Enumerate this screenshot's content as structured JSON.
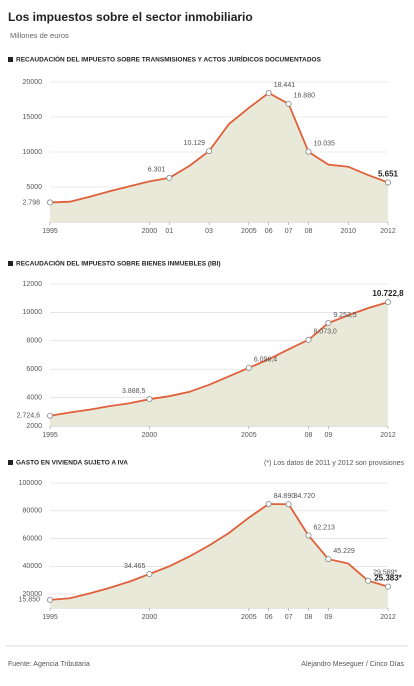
{
  "title": "Los impuestos sobre el sector inmobiliario",
  "subtitle": "Millones de euros",
  "source": "Fuente: Agencia Tributaria",
  "credit": "Alejandro Meseguer / Cinco Días",
  "chart_data": [
    {
      "type": "area",
      "title": "RECAUDACIÓN DEL IMPUESTO SOBRE TRANSMISIONES Y ACTOS JURÍDICOS DOCUMENTADOS",
      "color": "#e0603a",
      "fill": "#e9e9da",
      "grid": true,
      "x": [
        1995,
        1996,
        1997,
        1998,
        1999,
        2000,
        2001,
        2002,
        2003,
        2004,
        2005,
        2006,
        2007,
        2008,
        2009,
        2010,
        2011,
        2012
      ],
      "values": [
        2798,
        2900,
        3600,
        4400,
        5100,
        5800,
        6301,
        8000,
        10129,
        14000,
        16300,
        18441,
        16880,
        10035,
        8200,
        7900,
        6700,
        5651
      ],
      "value_labels": [
        "2.798",
        null,
        null,
        null,
        null,
        null,
        "6.301",
        null,
        "10.129",
        null,
        null,
        "18.441",
        "16.880",
        "10.035",
        null,
        null,
        null,
        "5.651"
      ],
      "xlim": [
        1995,
        2012
      ],
      "xticks": [
        1995,
        2000,
        {
          "value": 2001,
          "label": "01"
        },
        {
          "value": 2003,
          "label": "03"
        },
        2005,
        {
          "value": 2006,
          "label": "06"
        },
        {
          "value": 2007,
          "label": "07"
        },
        {
          "value": 2008,
          "label": "08"
        },
        2010,
        2012
      ],
      "ylim": [
        0,
        20000
      ],
      "yticks": [
        5000,
        10000,
        15000,
        20000
      ]
    },
    {
      "type": "area",
      "title": "RECAUDACIÓN DEL IMPUESTO SOBRE BIENES INMUEBLES (IBI)",
      "color": "#e0603a",
      "fill": "#e9e9da",
      "grid": true,
      "x": [
        1995,
        1996,
        1997,
        1998,
        1999,
        2000,
        2001,
        2002,
        2003,
        2004,
        2005,
        2006,
        2007,
        2008,
        2009,
        2010,
        2011,
        2012
      ],
      "values": [
        2724.6,
        2950,
        3150,
        3400,
        3600,
        3888.5,
        4100,
        4400,
        4900,
        5500,
        6096.4,
        6700,
        7400,
        8073.0,
        9253.5,
        9800,
        10300,
        10722.8
      ],
      "value_labels": [
        "2.724,6",
        null,
        null,
        null,
        null,
        "3.888,5",
        null,
        null,
        null,
        null,
        "6.096,4",
        null,
        null,
        "8.073,0",
        "9.253,5",
        null,
        null,
        "10.722,8"
      ],
      "xlim": [
        1995,
        2012
      ],
      "xticks": [
        1995,
        2000,
        2005,
        {
          "value": 2008,
          "label": "08"
        },
        {
          "value": 2009,
          "label": "09"
        },
        2012
      ],
      "ylim": [
        2000,
        12000
      ],
      "yticks": [
        2000,
        4000,
        6000,
        8000,
        10000,
        12000
      ]
    },
    {
      "type": "area",
      "title": "GASTO EN VIVIENDA SUJETO A IVA",
      "note": "(*) Los datos de 2011 y 2012 son provisiones",
      "color": "#e0603a",
      "fill": "#e9e9da",
      "grid": true,
      "x": [
        1995,
        1996,
        1997,
        1998,
        1999,
        2000,
        2001,
        2002,
        2003,
        2004,
        2005,
        2006,
        2007,
        2008,
        2009,
        2010,
        2011,
        2012
      ],
      "values": [
        15850,
        17000,
        20500,
        24500,
        29000,
        34465,
        40000,
        47000,
        55000,
        64000,
        75000,
        84890,
        84720,
        62213,
        45229,
        42000,
        29589,
        25383
      ],
      "value_labels": [
        "15.850",
        null,
        null,
        null,
        null,
        "34.465",
        null,
        null,
        null,
        null,
        null,
        "84.890",
        "84.720",
        "62.213",
        "45.229",
        null,
        "29.589*",
        "25.383*"
      ],
      "xlim": [
        1995,
        2012
      ],
      "xticks": [
        1995,
        2000,
        2005,
        {
          "value": 2006,
          "label": "06"
        },
        {
          "value": 2007,
          "label": "07"
        },
        {
          "value": 2008,
          "label": "08"
        },
        {
          "value": 2009,
          "label": "09"
        },
        2012
      ],
      "ylim": [
        10000,
        100000
      ],
      "yticks": [
        20000,
        40000,
        60000,
        80000,
        100000
      ]
    }
  ]
}
